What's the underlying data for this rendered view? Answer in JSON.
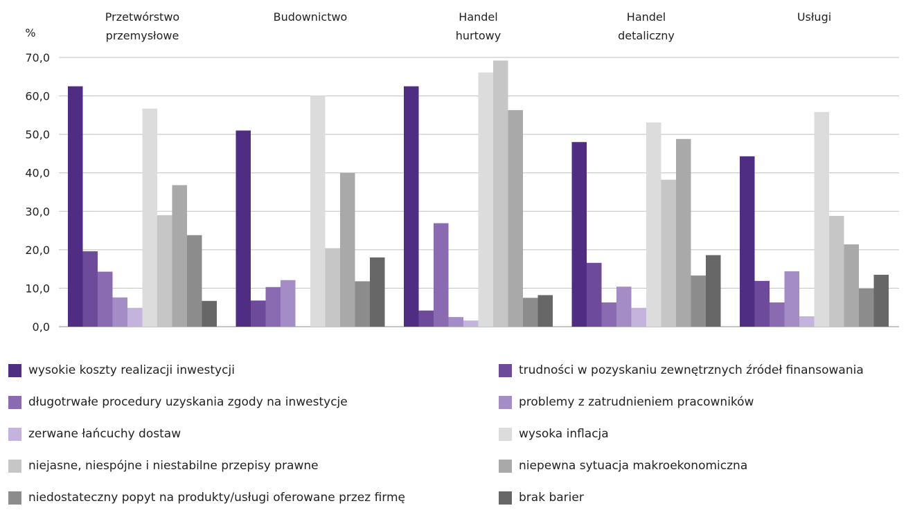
{
  "chart_data": {
    "type": "bar",
    "ylabel": "%",
    "ylim": [
      0,
      70
    ],
    "yticks": [
      "0,0",
      "10,0",
      "20,0",
      "30,0",
      "40,0",
      "50,0",
      "60,0",
      "70,0"
    ],
    "grid": true,
    "legend_position": "bottom",
    "categories": [
      [
        "Przetwórstwo",
        "przemysłowe"
      ],
      [
        "Budownictwo"
      ],
      [
        "Handel",
        "hurtowy"
      ],
      [
        "Handel",
        "detaliczny"
      ],
      [
        "Usługi"
      ]
    ],
    "series": [
      {
        "name": "wysokie koszty realizacji inwestycji",
        "color": "#4f2d82",
        "values": [
          62.5,
          51.0,
          62.5,
          48.0,
          44.3
        ]
      },
      {
        "name": "trudności w pozyskaniu zewnętrznych źródeł finansowania",
        "color": "#6e4a9a",
        "values": [
          19.6,
          6.8,
          4.2,
          16.6,
          11.9
        ]
      },
      {
        "name": "długotrwałe procedury uzyskania zgody na inwestycje",
        "color": "#8a6bb1",
        "values": [
          14.3,
          10.3,
          26.9,
          6.3,
          6.3
        ]
      },
      {
        "name": "problemy z zatrudnieniem pracowników",
        "color": "#a48cc6",
        "values": [
          7.6,
          12.1,
          2.5,
          10.4,
          14.4
        ]
      },
      {
        "name": "zerwane łańcuchy dostaw",
        "color": "#c4b3dc",
        "values": [
          4.9,
          0.0,
          1.6,
          4.9,
          2.7
        ]
      },
      {
        "name": "wysoka inflacja",
        "color": "#dcdcdc",
        "values": [
          56.7,
          60.0,
          66.1,
          53.1,
          55.8
        ]
      },
      {
        "name": "niejasne, niespójne i niestabilne przepisy prawne",
        "color": "#c6c6c6",
        "values": [
          29.0,
          20.4,
          69.2,
          38.2,
          28.8
        ]
      },
      {
        "name": "niepewna sytuacja makroekonomiczna",
        "color": "#a9a9a9",
        "values": [
          36.8,
          40.0,
          56.3,
          48.8,
          21.4
        ]
      },
      {
        "name": "niedostateczny popyt na produkty/usługi oferowane przez firmę",
        "color": "#8c8c8c",
        "values": [
          23.8,
          11.8,
          7.5,
          13.3,
          9.9
        ]
      },
      {
        "name": "brak barier",
        "color": "#676767",
        "values": [
          6.7,
          18.0,
          8.2,
          18.6,
          13.5
        ]
      }
    ]
  }
}
